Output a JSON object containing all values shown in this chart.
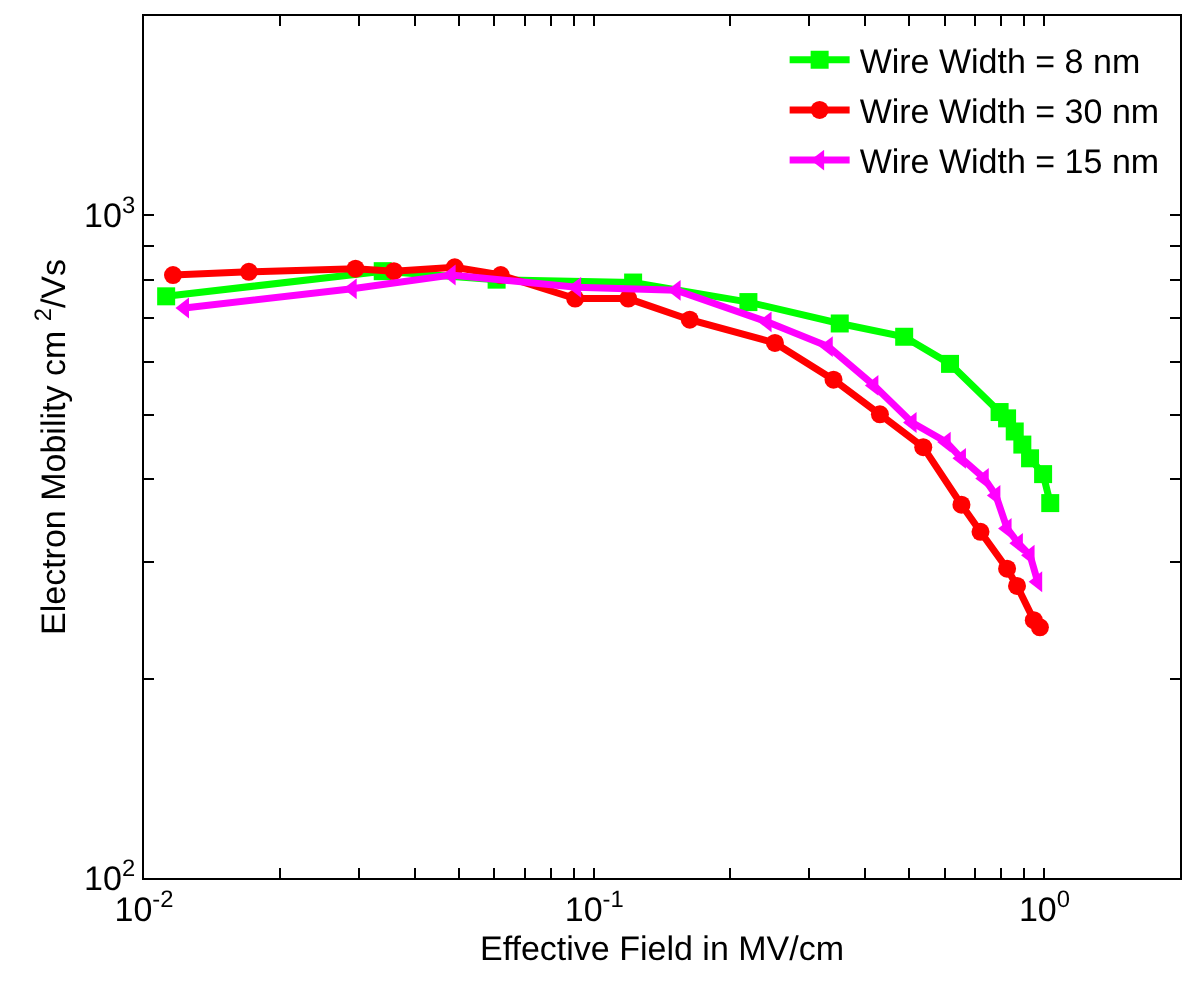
{
  "chart_data": {
    "type": "line",
    "xlabel": "Effective Field in MV/cm",
    "ylabel": "Electron Mobility cm $^{2}$/Vs",
    "log": "xy",
    "legend": "top right",
    "line_style": "solid",
    "xlim": [
      0.01,
      2
    ],
    "ylim": [
      100,
      2000
    ],
    "xticks": [
      {
        "value": 0.01,
        "label": "10$^{-2}$"
      },
      {
        "value": 0.02,
        "label": null
      },
      {
        "value": 0.03,
        "label": null
      },
      {
        "value": 0.04,
        "label": null
      },
      {
        "value": 0.05,
        "label": null
      },
      {
        "value": 0.06,
        "label": null
      },
      {
        "value": 0.07,
        "label": null
      },
      {
        "value": 0.08,
        "label": null
      },
      {
        "value": 0.09,
        "label": null
      },
      {
        "value": 0.1,
        "label": "10$^{-1}$"
      },
      {
        "value": 0.2,
        "label": null
      },
      {
        "value": 0.3,
        "label": null
      },
      {
        "value": 0.4,
        "label": null
      },
      {
        "value": 0.5,
        "label": null
      },
      {
        "value": 0.6,
        "label": null
      },
      {
        "value": 0.7,
        "label": null
      },
      {
        "value": 0.8,
        "label": null
      },
      {
        "value": 0.9,
        "label": null
      },
      {
        "value": 1,
        "label": "10$^{0}$"
      },
      {
        "value": 2,
        "label": null
      }
    ],
    "yticks": [
      {
        "value": 100,
        "label": "10$^{2}$"
      },
      {
        "value": 200,
        "label": null
      },
      {
        "value": 300,
        "label": null
      },
      {
        "value": 400,
        "label": null
      },
      {
        "value": 500,
        "label": null
      },
      {
        "value": 600,
        "label": null
      },
      {
        "value": 700,
        "label": null
      },
      {
        "value": 800,
        "label": null
      },
      {
        "value": 900,
        "label": null
      },
      {
        "value": 1000,
        "label": "10$^{3}$"
      },
      {
        "value": 2000,
        "label": null
      }
    ],
    "series": [
      {
        "name": "Wire Width = 8 nm",
        "color": "#00ff00",
        "marker": "square",
        "x": [
          0.0112,
          0.0339,
          0.0607,
          0.122,
          0.22,
          0.351,
          0.488,
          0.617,
          0.795,
          0.826,
          0.859,
          0.893,
          0.929,
          0.993,
          1.03
        ],
        "values": [
          755,
          824,
          800,
          792,
          740,
          687,
          656,
          597,
          505,
          494,
          472,
          451,
          430,
          407,
          368
        ]
      },
      {
        "name": "Wire Width = 30 nm",
        "color": "#ff0000",
        "marker": "circle",
        "x": [
          0.0116,
          0.0171,
          0.0295,
          0.0359,
          0.049,
          0.062,
          0.0907,
          0.119,
          0.163,
          0.252,
          0.34,
          0.431,
          0.538,
          0.654,
          0.721,
          0.826,
          0.869,
          0.947,
          0.977
        ],
        "values": [
          813,
          822,
          831,
          824,
          835,
          813,
          749,
          749,
          696,
          642,
          565,
          501,
          447,
          366,
          333,
          293,
          276,
          245,
          239
        ]
      },
      {
        "name": "Wire Width = 15 nm",
        "color": "#ff00ff",
        "marker": "triangle",
        "x": [
          0.0123,
          0.029,
          0.0481,
          0.0914,
          0.152,
          0.242,
          0.331,
          0.418,
          0.508,
          0.605,
          0.654,
          0.735,
          0.78,
          0.826,
          0.875,
          0.929,
          0.966
        ],
        "values": [
          725,
          775,
          813,
          779,
          771,
          691,
          634,
          554,
          487,
          455,
          430,
          401,
          378,
          337,
          320,
          307,
          280
        ]
      }
    ]
  }
}
